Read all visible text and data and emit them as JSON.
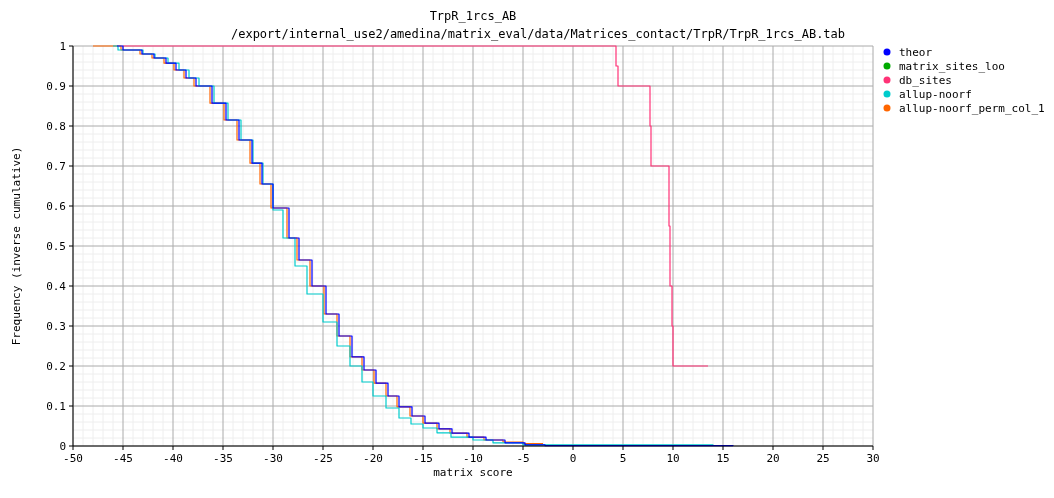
{
  "chart_data": {
    "type": "step",
    "title": "TrpR_1rcs_AB",
    "subtitle": "/export/internal_use2/amedina/matrix_eval/data/Matrices_contact/TrpR/TrpR_1rcs_AB.tab",
    "xlabel": "matrix score",
    "ylabel": "Frequency (inverse cumulative)",
    "xlim": [
      -50,
      30
    ],
    "ylim": [
      0,
      1
    ],
    "xticks": [
      -50,
      -45,
      -40,
      -35,
      -30,
      -25,
      -20,
      -15,
      -10,
      -5,
      0,
      5,
      10,
      15,
      20,
      25,
      30
    ],
    "yticks": [
      0,
      0.1,
      0.2,
      0.3,
      0.4,
      0.5,
      0.6,
      0.7,
      0.8,
      0.9,
      1
    ],
    "grid": true,
    "legend": "right",
    "series": [
      {
        "name": "theor",
        "color": "#0000ff",
        "x": [
          -45.6,
          -45,
          -43.1,
          -41.9,
          -40.7,
          -39.7,
          -38.7,
          -37.7,
          -36.1,
          -34.7,
          -33.4,
          -32.1,
          -31.1,
          -30,
          -28.4,
          -27.4,
          -26.1,
          -24.7,
          -23.4,
          -22.1,
          -20.9,
          -19.7,
          -18.5,
          -17.4,
          -16.1,
          -14.8,
          -13.4,
          -12.1,
          -10.4,
          -8.7,
          -6.8,
          -4.8,
          -2.8,
          13,
          16
        ],
        "values": [
          1,
          0.99,
          0.98,
          0.97,
          0.957,
          0.94,
          0.92,
          0.9,
          0.857,
          0.815,
          0.765,
          0.707,
          0.655,
          0.595,
          0.52,
          0.465,
          0.4,
          0.33,
          0.275,
          0.223,
          0.19,
          0.157,
          0.125,
          0.098,
          0.075,
          0.057,
          0.043,
          0.032,
          0.022,
          0.015,
          0.008,
          0.003,
          0.001,
          0.001,
          0
        ]
      },
      {
        "name": "matrix_sites_loo",
        "color": "#00aa00",
        "values": [
          null
        ]
      },
      {
        "name": "db_sites",
        "color": "#ff3377",
        "x": [
          -45,
          4.3,
          4.5,
          7.7,
          7.8,
          9.6,
          9.7,
          9.9,
          10,
          13.5
        ],
        "values": [
          1,
          0.95,
          0.9,
          0.8,
          0.7,
          0.55,
          0.4,
          0.3,
          0.2,
          0.2
        ]
      },
      {
        "name": "allup-noorf",
        "color": "#00cccc",
        "x": [
          -46,
          -45.5,
          -43,
          -41.8,
          -40.5,
          -39.4,
          -38.4,
          -37.4,
          -35.9,
          -34.5,
          -33.2,
          -32,
          -31,
          -30,
          -29,
          -27.8,
          -26.6,
          -25,
          -23.6,
          -22.3,
          -21.1,
          -20,
          -18.7,
          -17.4,
          -16.2,
          -15,
          -13.6,
          -12.2,
          -10,
          -8,
          -5,
          14
        ],
        "values": [
          1,
          0.99,
          0.98,
          0.97,
          0.957,
          0.94,
          0.92,
          0.9,
          0.857,
          0.815,
          0.765,
          0.707,
          0.655,
          0.59,
          0.52,
          0.45,
          0.38,
          0.31,
          0.25,
          0.2,
          0.16,
          0.125,
          0.095,
          0.07,
          0.055,
          0.045,
          0.033,
          0.022,
          0.015,
          0.008,
          0.003,
          0
        ]
      },
      {
        "name": "allup-noorf_perm_col_1",
        "color": "#ff6600",
        "x": [
          -48,
          -45.2,
          -43.3,
          -42.1,
          -40.9,
          -39.9,
          -38.9,
          -37.9,
          -36.3,
          -34.9,
          -33.6,
          -32.3,
          -31.3,
          -30.2,
          -28.6,
          -27.6,
          -26.3,
          -24.9,
          -23.6,
          -22.3,
          -21.1,
          -19.9,
          -18.7,
          -17.6,
          -16.3,
          -15,
          -13.6,
          -12.3,
          -10.6,
          -8.9,
          -7,
          -5,
          -3
        ],
        "values": [
          1,
          0.99,
          0.98,
          0.97,
          0.957,
          0.94,
          0.92,
          0.9,
          0.857,
          0.815,
          0.765,
          0.707,
          0.655,
          0.595,
          0.52,
          0.465,
          0.4,
          0.33,
          0.275,
          0.223,
          0.19,
          0.157,
          0.125,
          0.098,
          0.075,
          0.057,
          0.043,
          0.032,
          0.022,
          0.015,
          0.01,
          0.006,
          0.006
        ]
      }
    ]
  }
}
